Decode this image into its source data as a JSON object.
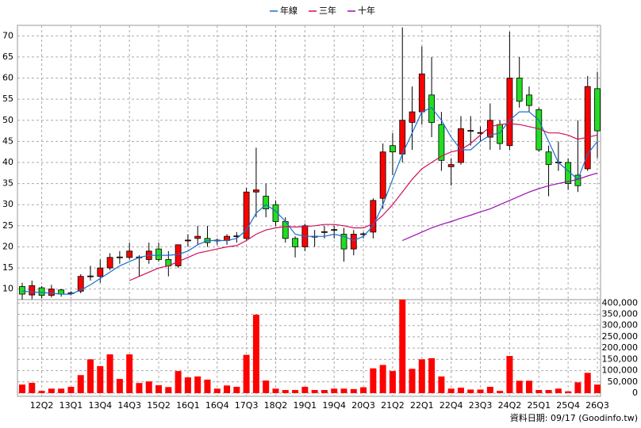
{
  "chart_data": {
    "type": "candlestick",
    "legend": "top",
    "grid": true,
    "source": "資料日期: 09/17 (Goodinfo.tw)",
    "up_color": "#ff0000",
    "down_color": "#22dd22",
    "categories": [
      null,
      null,
      "12Q2",
      null,
      null,
      "13Q1",
      null,
      null,
      "13Q4",
      null,
      null,
      "14Q3",
      null,
      null,
      "15Q2",
      null,
      null,
      "16Q1",
      null,
      null,
      "16Q4",
      null,
      null,
      "17Q3",
      null,
      null,
      "18Q2",
      null,
      null,
      "19Q1",
      null,
      null,
      "19Q4",
      null,
      null,
      "20Q3",
      null,
      null,
      "21Q2",
      null,
      null,
      "22Q1",
      null,
      null,
      "22Q4",
      null,
      null,
      "23Q3",
      null,
      null,
      "24Q2",
      null,
      null,
      "25Q1",
      null,
      null,
      "25Q4",
      null,
      null,
      "26Q3"
    ],
    "open": [
      10.6,
      8.6,
      10.3,
      8.5,
      9.8,
      9,
      9.5,
      13,
      13,
      15,
      17.5,
      17.5,
      17.5,
      17,
      19.5,
      17,
      15.5,
      21.5,
      22,
      22,
      21.5,
      21.5,
      22.5,
      22,
      33,
      32,
      30,
      26,
      22,
      20,
      22.5,
      23.5,
      24,
      23,
      19.5,
      23,
      23.5,
      31.5,
      44,
      42,
      49.5,
      52,
      56,
      49,
      39,
      40,
      47.5,
      47,
      46,
      49,
      44,
      60,
      56,
      52.5,
      42.5,
      40,
      40,
      37,
      38.5,
      57.5
    ],
    "high": [
      11.5,
      12,
      10.7,
      11,
      10,
      9.5,
      13.5,
      15.5,
      17,
      18.5,
      19,
      21,
      18,
      21,
      21,
      19,
      20.5,
      23,
      25,
      25,
      22,
      23,
      23.5,
      34,
      43.5,
      35,
      31,
      27,
      22.5,
      25.5,
      24,
      25,
      25,
      24.5,
      24,
      23.5,
      31.5,
      44.5,
      47,
      72,
      58,
      67.5,
      65,
      52,
      41,
      51,
      51,
      48.5,
      54,
      50,
      71,
      65,
      58,
      53,
      44,
      45,
      41,
      50,
      60.5,
      61.5
    ],
    "low": [
      7.5,
      7.6,
      7.8,
      8,
      8.2,
      8.5,
      9,
      12,
      11.5,
      14.5,
      16,
      17,
      13,
      16,
      16.5,
      13,
      15,
      20,
      20.5,
      20,
      20.5,
      20.5,
      21,
      21.5,
      27,
      27,
      25,
      21,
      17.5,
      19,
      20,
      22,
      22,
      16.5,
      18,
      22,
      22,
      29,
      37,
      40,
      43,
      49,
      46,
      38,
      34.5,
      39.5,
      44,
      45,
      43,
      43,
      43,
      53,
      52,
      42.5,
      32,
      38,
      33.5,
      33,
      38,
      41
    ],
    "close": [
      8.8,
      10.8,
      8.5,
      10,
      8.8,
      9.1,
      13,
      13.1,
      15,
      17.5,
      17.6,
      19,
      17.6,
      19,
      17,
      15.5,
      20.5,
      21.6,
      22.5,
      21,
      21.6,
      22.5,
      22.6,
      33,
      33.5,
      29,
      26,
      22,
      20,
      25,
      22.4,
      23.6,
      24.1,
      19.5,
      23,
      23.1,
      31,
      42.5,
      42.5,
      50,
      52,
      61,
      49.5,
      40.5,
      39.5,
      48,
      47.6,
      47.1,
      50,
      44.5,
      60,
      54.5,
      53.5,
      43,
      39.5,
      40.1,
      35,
      34.5,
      58,
      47.5
    ],
    "ylim": [
      7.5,
      72.5
    ],
    "yticks": [
      10,
      15,
      20,
      25,
      30,
      35,
      40,
      45,
      50,
      55,
      60,
      65,
      70
    ],
    "series": [
      {
        "name": "年線",
        "color": "#1a6fd0",
        "values": [
          9.5,
          9.3,
          9.2,
          9,
          8.8,
          8.8,
          9.8,
          11,
          12.5,
          14,
          15.5,
          16.5,
          17.5,
          18,
          18,
          18,
          18.2,
          19,
          20.5,
          21.5,
          21.5,
          21.5,
          22,
          24,
          28,
          30,
          28.5,
          26,
          23,
          22.5,
          22.5,
          22.5,
          23,
          22.5,
          21.5,
          22.5,
          25,
          30,
          36,
          42,
          47,
          52,
          53,
          50,
          46,
          43,
          43,
          45,
          46.5,
          47,
          50,
          52,
          52,
          50,
          45,
          40,
          38,
          36,
          42,
          45
        ]
      },
      {
        "name": "三年",
        "color": "#d0105a",
        "values": [
          null,
          null,
          null,
          null,
          null,
          null,
          null,
          null,
          null,
          null,
          null,
          12,
          13,
          14,
          15,
          15.5,
          16.5,
          17.5,
          18.5,
          19,
          19.5,
          20,
          20.3,
          21.5,
          23,
          24,
          24.5,
          24.8,
          24.7,
          24.8,
          25,
          25.3,
          25.3,
          25,
          24.5,
          24.5,
          25.5,
          27.5,
          30,
          33,
          36,
          38.5,
          40,
          41.5,
          42.5,
          43,
          44.5,
          46.5,
          48.5,
          49,
          49.2,
          49,
          48.5,
          48,
          47,
          47,
          46.5,
          45.5,
          46,
          46.5
        ]
      },
      {
        "name": "十年",
        "color": "#9a10b0",
        "values": [
          null,
          null,
          null,
          null,
          null,
          null,
          null,
          null,
          null,
          null,
          null,
          null,
          null,
          null,
          null,
          null,
          null,
          null,
          null,
          null,
          null,
          null,
          null,
          null,
          null,
          null,
          null,
          null,
          null,
          null,
          null,
          null,
          null,
          null,
          null,
          null,
          null,
          null,
          null,
          21.5,
          22.5,
          23.5,
          24.5,
          25.3,
          26,
          26.8,
          27.5,
          28.3,
          29,
          30,
          31,
          32,
          33,
          33.8,
          34.5,
          35,
          35.5,
          36,
          36.8,
          37.5
        ]
      }
    ],
    "volume": {
      "color": "#ff0000",
      "ylim": [
        -14000,
        415000
      ],
      "yticks": [
        0,
        {
          "value": 50000,
          "label": "50,000"
        },
        {
          "value": 100000,
          "label": "100,000"
        },
        {
          "value": 150000,
          "label": "150,000"
        },
        {
          "value": 200000,
          "label": "200,000"
        },
        {
          "value": 250000,
          "label": "250,000"
        },
        {
          "value": 300000,
          "label": "300,000"
        },
        {
          "value": 350000,
          "label": "350,000"
        },
        {
          "value": 400000,
          "label": "400,000"
        }
      ],
      "values": [
        38000,
        46000,
        10000,
        20000,
        20000,
        28000,
        80000,
        150000,
        120000,
        172000,
        63000,
        172000,
        45000,
        52000,
        35000,
        27000,
        98000,
        70000,
        74000,
        60000,
        20000,
        34000,
        28000,
        170000,
        348000,
        56000,
        20000,
        14000,
        14000,
        28000,
        14000,
        14000,
        20000,
        20000,
        18000,
        26000,
        110000,
        125000,
        98000,
        415000,
        108000,
        150000,
        155000,
        74000,
        20000,
        24000,
        16000,
        16000,
        28000,
        10000,
        165000,
        55000,
        55000,
        14000,
        14000,
        20000,
        8000,
        48000,
        90000,
        38000
      ]
    }
  }
}
